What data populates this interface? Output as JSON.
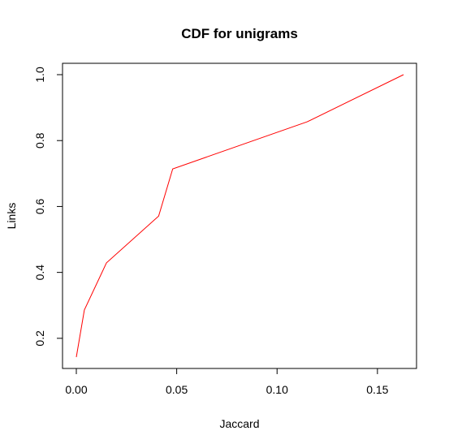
{
  "chart_data": {
    "type": "line",
    "title": "CDF for unigrams",
    "xlabel": "Jaccard",
    "ylabel": "Links",
    "xlim": [
      0,
      0.163
    ],
    "ylim": [
      0.143,
      1.0
    ],
    "xticks": [
      0.0,
      0.05,
      0.1,
      0.15
    ],
    "xtick_labels": [
      "0.00",
      "0.05",
      "0.10",
      "0.15"
    ],
    "yticks": [
      0.2,
      0.4,
      0.6,
      0.8,
      1.0
    ],
    "ytick_labels": [
      "0.2",
      "0.4",
      "0.6",
      "0.8",
      "1.0"
    ],
    "grid": false,
    "series": [
      {
        "color": "#ff0000",
        "x": [
          0.0,
          0.004,
          0.015,
          0.041,
          0.048,
          0.115,
          0.163
        ],
        "y": [
          0.143,
          0.286,
          0.429,
          0.571,
          0.714,
          0.857,
          1.0
        ]
      }
    ]
  }
}
